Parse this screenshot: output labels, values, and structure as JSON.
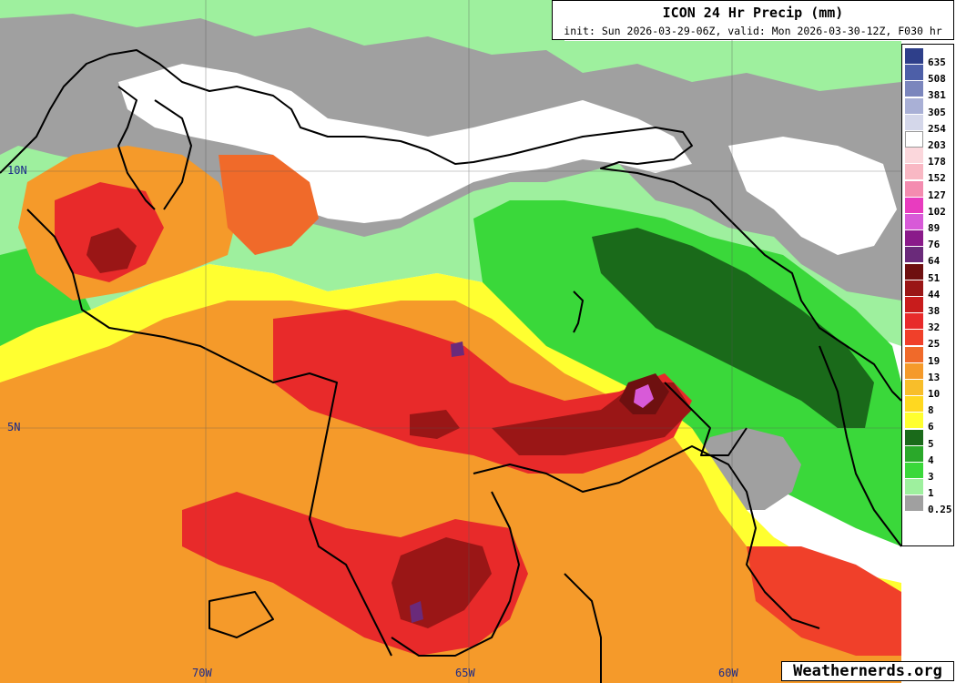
{
  "title": "ICON 24 Hr Precip (mm)",
  "subtitle": "init: Sun 2026-03-29-06Z, valid: Mon 2026-03-30-12Z, F030 hr",
  "credit": "Weathernerds.org",
  "lat_labels": [
    "10N",
    "5N"
  ],
  "lon_labels": [
    "70W",
    "65W",
    "60W"
  ],
  "legend": [
    {
      "label": "635",
      "color": "#2e3f8a"
    },
    {
      "label": "508",
      "color": "#4d5fa8"
    },
    {
      "label": "381",
      "color": "#7b86bd"
    },
    {
      "label": "305",
      "color": "#a9b0d6"
    },
    {
      "label": "254",
      "color": "#d4d7ea"
    },
    {
      "label": "203",
      "color": "#ffffff"
    },
    {
      "label": "178",
      "color": "#fbd7dc"
    },
    {
      "label": "152",
      "color": "#f9b8c4"
    },
    {
      "label": "127",
      "color": "#f48cb0"
    },
    {
      "label": "102",
      "color": "#e83cbf"
    },
    {
      "label": "89",
      "color": "#d85ad8"
    },
    {
      "label": "76",
      "color": "#8a1a8a"
    },
    {
      "label": "64",
      "color": "#6a2a7a"
    },
    {
      "label": "51",
      "color": "#6e1010"
    },
    {
      "label": "44",
      "color": "#9a1616"
    },
    {
      "label": "38",
      "color": "#c81c1c"
    },
    {
      "label": "32",
      "color": "#e82a2a"
    },
    {
      "label": "25",
      "color": "#f0402a"
    },
    {
      "label": "19",
      "color": "#f06a2a"
    },
    {
      "label": "13",
      "color": "#f59a2a"
    },
    {
      "label": "10",
      "color": "#f8be2a"
    },
    {
      "label": "8",
      "color": "#ffd820"
    },
    {
      "label": "6",
      "color": "#ffff30"
    },
    {
      "label": "5",
      "color": "#1a6a1a"
    },
    {
      "label": "4",
      "color": "#2aa82a"
    },
    {
      "label": "3",
      "color": "#3ad83a"
    },
    {
      "label": "1",
      "color": "#9ef09e"
    },
    {
      "label": "0.25",
      "color": "#a0a0a0"
    }
  ]
}
